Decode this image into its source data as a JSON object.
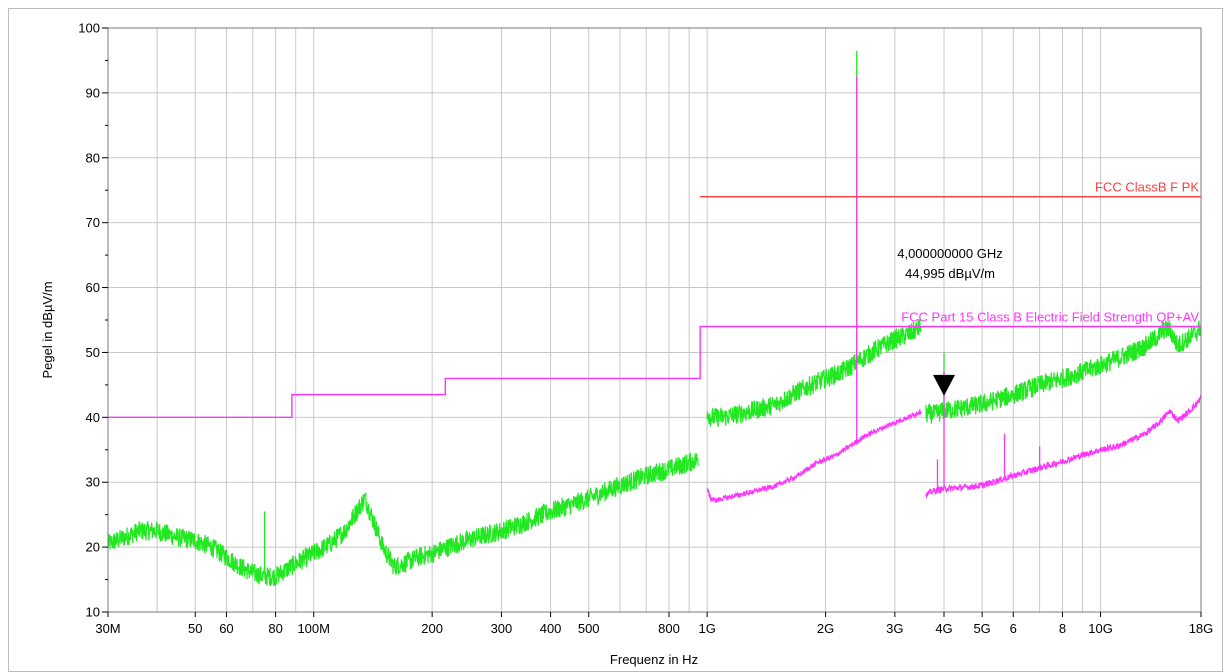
{
  "chart_data": {
    "type": "line",
    "xscale": "log",
    "xlim": [
      30000000,
      18000000000
    ],
    "ylim": [
      10,
      100
    ],
    "grid": true,
    "xlabel": "Frequenz in Hz",
    "ylabel": "Pegel in dBµV/m",
    "y_ticks": [
      10,
      20,
      30,
      40,
      50,
      60,
      70,
      80,
      90,
      100
    ],
    "x_ticks": [
      {
        "value": 30000000,
        "label": "30M"
      },
      {
        "value": 50000000,
        "label": "50"
      },
      {
        "value": 60000000,
        "label": "60"
      },
      {
        "value": 80000000,
        "label": "80"
      },
      {
        "value": 100000000,
        "label": "100M"
      },
      {
        "value": 200000000,
        "label": "200"
      },
      {
        "value": 300000000,
        "label": "300"
      },
      {
        "value": 400000000,
        "label": "400"
      },
      {
        "value": 500000000,
        "label": "500"
      },
      {
        "value": 800000000,
        "label": "800"
      },
      {
        "value": 1000000000,
        "label": "1G"
      },
      {
        "value": 2000000000,
        "label": "2G"
      },
      {
        "value": 3000000000,
        "label": "3G"
      },
      {
        "value": 4000000000,
        "label": "4G"
      },
      {
        "value": 5000000000,
        "label": "5G"
      },
      {
        "value": 6000000000,
        "label": "6"
      },
      {
        "value": 8000000000,
        "label": "8"
      },
      {
        "value": 10000000000,
        "label": "10G"
      },
      {
        "value": 18000000000,
        "label": "18G"
      }
    ],
    "limit_lines": [
      {
        "name": "FCC ClassB F PK",
        "color": "#ff3b3b",
        "x": [
          960000000,
          18000000000
        ],
        "y": [
          74,
          74
        ]
      },
      {
        "name": "FCC Part 15 Class B Electric Field Strength QP+AV",
        "color": "#ff33ff",
        "x": [
          30000000,
          88000000,
          88000000,
          216000000,
          216000000,
          960000000,
          960000000,
          18000000000
        ],
        "y": [
          40,
          40,
          43.5,
          43.5,
          46,
          46,
          54,
          54
        ]
      }
    ],
    "series": [
      {
        "color": "#22e822",
        "segments": [
          {
            "x": [
              30000000,
              33000000,
              36000000,
              40000000,
              45000000,
              50000000,
              55000000,
              60000000,
              65000000,
              70000000,
              75000000,
              80000000,
              85000000,
              90000000,
              100000000,
              110000000,
              120000000,
              130000000,
              135000000,
              140000000,
              150000000,
              160000000,
              170000000,
              185000000,
              200000000,
              230000000,
              260000000,
              300000000,
              350000000,
              400000000,
              450000000,
              500000000,
              600000000,
              700000000,
              800000000,
              950000000
            ],
            "y": [
              20.5,
              21.5,
              22.5,
              22.5,
              21.5,
              21,
              20,
              18.5,
              17,
              16,
              15.5,
              15.5,
              16.5,
              17.5,
              19,
              20.5,
              22.5,
              26,
              27.5,
              25,
              20,
              17,
              17.5,
              18.5,
              19,
              20.5,
              21.5,
              22.5,
              24,
              25.5,
              26.5,
              27.5,
              29.5,
              31,
              32,
              33.5
            ],
            "noise": 1.5
          },
          {
            "x": [
              1000000000,
              1020000000,
              1100000000,
              1300000000,
              1500000000,
              1700000000,
              2000000000,
              2200000000,
              2400000000,
              2700000000,
              3000000000,
              3300000000,
              3500000000
            ],
            "y": [
              41,
              40,
              40,
              41,
              42,
              44,
              46,
              47,
              48.5,
              50.5,
              52,
              53,
              54
            ],
            "noise": 1.5
          },
          {
            "x": [
              3600000000,
              3800000000,
              4000000000,
              4500000000,
              5000000000,
              6000000000,
              7000000000,
              8000000000,
              9000000000,
              10000000000,
              11000000000,
              12000000000,
              13000000000,
              14000000000,
              14500000000,
              15000000000,
              15700000000,
              16500000000,
              17500000000,
              18000000000
            ],
            "y": [
              40.5,
              40.5,
              41,
              41.5,
              42,
              43.5,
              45,
              46,
              47,
              48,
              49,
              50,
              51,
              52.5,
              53.5,
              53.5,
              51,
              52,
              53,
              54
            ],
            "noise": 1.5
          }
        ],
        "spikes": [
          {
            "x": 75000000,
            "top": 25.5,
            "base": 16
          },
          {
            "x": 2400000000,
            "top": 96.5,
            "base": 48
          },
          {
            "x": 4000000000,
            "top": 50,
            "base": 42
          }
        ]
      },
      {
        "color": "#ff33ff",
        "segments": [
          {
            "x": [
              1000000000,
              1020000000,
              1050000000,
              1100000000,
              1300000000,
              1500000000,
              1700000000,
              1900000000,
              2100000000,
              2300000000,
              2500000000,
              2700000000,
              3000000000,
              3300000000,
              3500000000
            ],
            "y": [
              29,
              27.5,
              27.2,
              27.5,
              28.5,
              29.5,
              31,
              33,
              34,
              35.5,
              37,
              38,
              39.2,
              40.2,
              41
            ],
            "noise": 0.4
          },
          {
            "x": [
              3600000000,
              3700000000,
              4000000000,
              4500000000,
              5000000000,
              6000000000,
              7000000000,
              8000000000,
              9000000000,
              10000000000,
              11000000000,
              12000000000,
              13000000000,
              14000000000,
              14500000000,
              15000000000,
              15700000000,
              16500000000,
              17500000000,
              18000000000
            ],
            "y": [
              28,
              28.5,
              29,
              29.2,
              29.5,
              31,
              32.2,
              33.2,
              34.2,
              35,
              35.5,
              36.5,
              37.5,
              39,
              40,
              41,
              39.5,
              40.5,
              42,
              43
            ],
            "noise": 0.5
          }
        ],
        "spikes": [
          {
            "x": 2400000000,
            "top": 92.5,
            "base": 36.5
          },
          {
            "x": 3850000000,
            "top": 33.5,
            "base": 29
          },
          {
            "x": 4000000000,
            "top": 47,
            "base": 29
          },
          {
            "x": 5700000000,
            "top": 37.5,
            "base": 30.5
          },
          {
            "x": 7000000000,
            "top": 35.5,
            "base": 32
          }
        ]
      }
    ],
    "marker": {
      "x": 4000000000,
      "y": 44.995,
      "freq_label": "4,000000000 GHz",
      "level_label": "44,995 dBµV/m"
    }
  }
}
